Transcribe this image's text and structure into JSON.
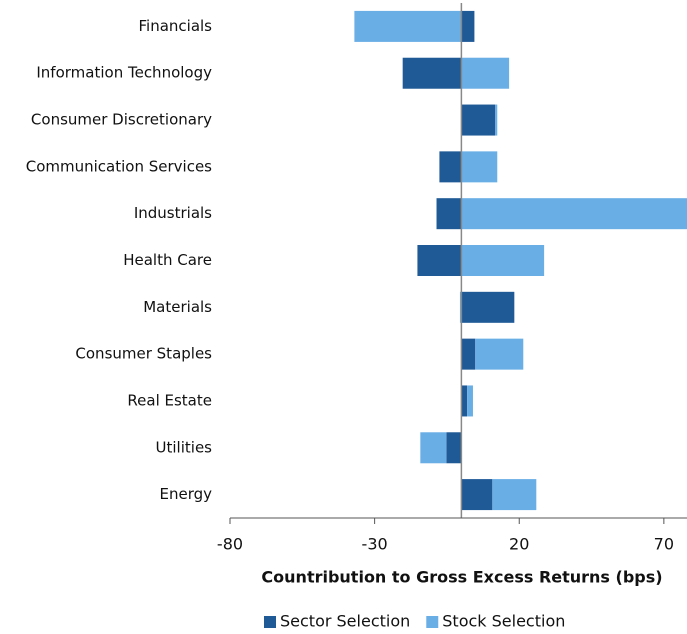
{
  "chart_data": {
    "type": "bar",
    "orientation": "horizontal",
    "stacked": true,
    "x_label": "Countribution to Gross Excess Returns (bps)",
    "categories": [
      "Financials",
      "Information Technology",
      "Consumer Discretionary",
      "Communication Services",
      "Industrials",
      "Health Care",
      "Materials",
      "Consumer Staples",
      "Real Estate",
      "Utilities",
      "Energy"
    ],
    "series": [
      {
        "name": "Sector Selection",
        "color": "#1f5a96",
        "values": [
          4.5,
          -20.3,
          11.7,
          -7.6,
          -8.6,
          -15.2,
          18.3,
          4.8,
          2,
          -5.2,
          10.7
        ]
      },
      {
        "name": "Stock Selection",
        "color": "#6aaee6",
        "values": [
          -37,
          16.5,
          0.7,
          12.4,
          78,
          28.6,
          -0.5,
          16.6,
          2,
          -9,
          15.2
        ]
      }
    ],
    "xlim": [
      -80,
      78
    ],
    "xticks": [
      -80,
      -30,
      20,
      70
    ],
    "legend": "bottom"
  }
}
